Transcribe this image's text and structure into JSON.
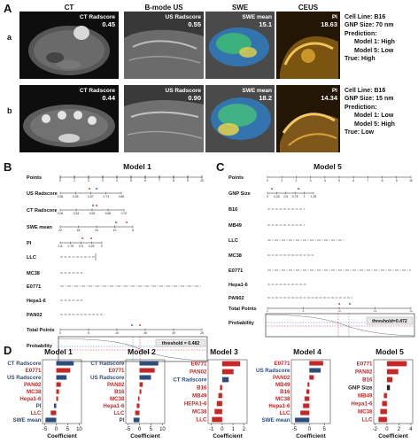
{
  "panels": {
    "A": "A",
    "B": "B",
    "C": "C",
    "D": "D"
  },
  "panel_a": {
    "columns": [
      "CT",
      "B-mode US",
      "SWE",
      "CEUS"
    ],
    "rows": [
      {
        "letter": "a",
        "ct_label": "CT Radscore",
        "ct_value": "0.45",
        "us_label": "US Radscore",
        "us_value": "0.55",
        "swe_label": "SWE mean",
        "swe_value": "15.1",
        "pi_label": "PI",
        "pi_value": "18.63",
        "info": [
          "Cell Line: B16",
          "GNP Size: 70 nm",
          "Prediction:",
          "Model 1: High",
          "Model 5: Low",
          "True: High"
        ]
      },
      {
        "letter": "b",
        "ct_label": "CT Radscore",
        "ct_value": "0.44",
        "us_label": "US Radscore",
        "us_value": "0.90",
        "swe_label": "SWE mean",
        "swe_value": "18.2",
        "pi_label": "PI",
        "pi_value": "14.34",
        "info": [
          "Cell Line: B16",
          "GNP Size: 15 nm",
          "Prediction:",
          "Model 1: Low",
          "Model 5: High",
          "True: Low"
        ]
      }
    ]
  },
  "panel_b": {
    "title": "Model 1",
    "rows": [
      "Points",
      "US Radscore",
      "CT Radscore",
      "SWE mean",
      "PI",
      "LLC",
      "MC38",
      "E0771",
      "Hepa1-6",
      "PAN02",
      "Total Points",
      "Probability"
    ],
    "points_ticks": [
      "0",
      "1",
      "2",
      "3",
      "4",
      "5",
      "6",
      "7",
      "8",
      "9",
      "10"
    ],
    "us_ticks": [
      "0.35",
      "0.45",
      "0.57",
      "0.73",
      "0.85"
    ],
    "ct_ticks": [
      "0.26",
      "0.34",
      "0.53",
      "0.66",
      "0.70"
    ],
    "swe_ticks": [
      "22",
      "18",
      "14",
      "10",
      "6"
    ],
    "pi_ticks": [
      "1.8",
      "0.75",
      "0.5",
      "0.25",
      "0"
    ],
    "total_ticks": [
      "0",
      "5",
      "10",
      "15",
      "20",
      "25"
    ],
    "threshold": "threshold = 0.482"
  },
  "panel_c": {
    "title": "Model 5",
    "rows": [
      "Points",
      "GNP Size",
      "B16",
      "MB49",
      "LLC",
      "MC38",
      "E0771",
      "Hepa1-6",
      "PAN02",
      "Total Points",
      "Probability"
    ],
    "points_ticks": [
      "0",
      "1",
      "2",
      "3",
      "4",
      "5",
      "6",
      "7",
      "8",
      "9",
      "10"
    ],
    "gnp_ticks": [
      "0",
      "0.25",
      "0.5",
      "0.75",
      "1",
      "1.25"
    ],
    "total_ticks": [
      "0",
      "5",
      "10",
      "15",
      "20"
    ],
    "threshold": "threshold=0.472"
  },
  "panel_d": {
    "xlabel": "Coefficient",
    "colors": {
      "red": "#c62828",
      "blue": "#2e4d7b",
      "black": "#222222"
    },
    "models": [
      {
        "title": "Model 1",
        "ticks": [
          "-5",
          "0",
          "5",
          "10"
        ],
        "range": [
          -6,
          11
        ],
        "bars": [
          {
            "label": "CT Radscore",
            "value": 7.6,
            "color": "blue"
          },
          {
            "label": "E0771",
            "value": 6.1,
            "color": "red"
          },
          {
            "label": "US Radscore",
            "value": 4.5,
            "color": "blue"
          },
          {
            "label": "PAN02",
            "value": 2.0,
            "color": "red"
          },
          {
            "label": "MC38",
            "value": 1.2,
            "color": "red"
          },
          {
            "label": "Hepa1-6",
            "value": 0.8,
            "color": "red"
          },
          {
            "label": "PI",
            "value": -1.0,
            "color": "blue"
          },
          {
            "label": "LLC",
            "value": -2.4,
            "color": "red"
          },
          {
            "label": "SWE mean",
            "value": -4.7,
            "color": "blue"
          }
        ]
      },
      {
        "title": "Model 2",
        "ticks": [
          "-5",
          "0",
          "5",
          "10"
        ],
        "range": [
          -6,
          11
        ],
        "bars": [
          {
            "label": "CT Radscore",
            "value": 8.2,
            "color": "blue"
          },
          {
            "label": "E0771",
            "value": 6.6,
            "color": "red"
          },
          {
            "label": "US Radscore",
            "value": 5.0,
            "color": "blue"
          },
          {
            "label": "PAN02",
            "value": 1.4,
            "color": "red"
          },
          {
            "label": "B16",
            "value": 0.8,
            "color": "red"
          },
          {
            "label": "MC38",
            "value": -0.6,
            "color": "red"
          },
          {
            "label": "Hepa1-6",
            "value": -1.2,
            "color": "red"
          },
          {
            "label": "LLC",
            "value": -1.9,
            "color": "red"
          },
          {
            "label": "PI",
            "value": -2.6,
            "color": "blue"
          }
        ]
      },
      {
        "title": "Model 3",
        "ticks": [
          "-1",
          "0",
          "1",
          "2"
        ],
        "range": [
          -1.3,
          2.3
        ],
        "bars": [
          {
            "label": "E0771",
            "value": 1.65,
            "color": "red"
          },
          {
            "label": "PAN02",
            "value": 1.05,
            "color": "red"
          },
          {
            "label": "CT Radscore",
            "value": 0.6,
            "color": "blue"
          },
          {
            "label": "B16",
            "value": -0.2,
            "color": "red"
          },
          {
            "label": "MB49",
            "value": -0.35,
            "color": "red"
          },
          {
            "label": "HEPA1-6",
            "value": -0.5,
            "color": "red"
          },
          {
            "label": "MC38",
            "value": -0.7,
            "color": "red"
          },
          {
            "label": "LLC",
            "value": -0.95,
            "color": "red"
          }
        ]
      },
      {
        "title": "Model 4",
        "ticks": [
          "-5",
          "0",
          "5"
        ],
        "range": [
          -6,
          7
        ],
        "bars": [
          {
            "label": "E0771",
            "value": 4.6,
            "color": "red"
          },
          {
            "label": "US Radscore",
            "value": 3.8,
            "color": "blue"
          },
          {
            "label": "PAN02",
            "value": 1.5,
            "color": "red"
          },
          {
            "label": "MB49",
            "value": -0.6,
            "color": "red"
          },
          {
            "label": "B16",
            "value": -1.0,
            "color": "red"
          },
          {
            "label": "MC38",
            "value": -1.6,
            "color": "red"
          },
          {
            "label": "Hepa1-6",
            "value": -2.1,
            "color": "red"
          },
          {
            "label": "LLC",
            "value": -3.0,
            "color": "red"
          },
          {
            "label": "SWE mean",
            "value": -4.8,
            "color": "blue"
          }
        ]
      },
      {
        "title": "Model 5",
        "ticks": [
          "-2",
          "0",
          "2",
          "4"
        ],
        "range": [
          -2.2,
          4.3
        ],
        "bars": [
          {
            "label": "E0771",
            "value": 3.3,
            "color": "red"
          },
          {
            "label": "PAN02",
            "value": 1.9,
            "color": "red"
          },
          {
            "label": "B16",
            "value": 0.9,
            "color": "red"
          },
          {
            "label": "GNP Size",
            "value": 0.5,
            "color": "black"
          },
          {
            "label": "MB49",
            "value": -0.5,
            "color": "red"
          },
          {
            "label": "Hepa1-6",
            "value": -0.8,
            "color": "red"
          },
          {
            "label": "MC38",
            "value": -1.1,
            "color": "red"
          },
          {
            "label": "LLC",
            "value": -1.4,
            "color": "red"
          }
        ]
      }
    ]
  }
}
